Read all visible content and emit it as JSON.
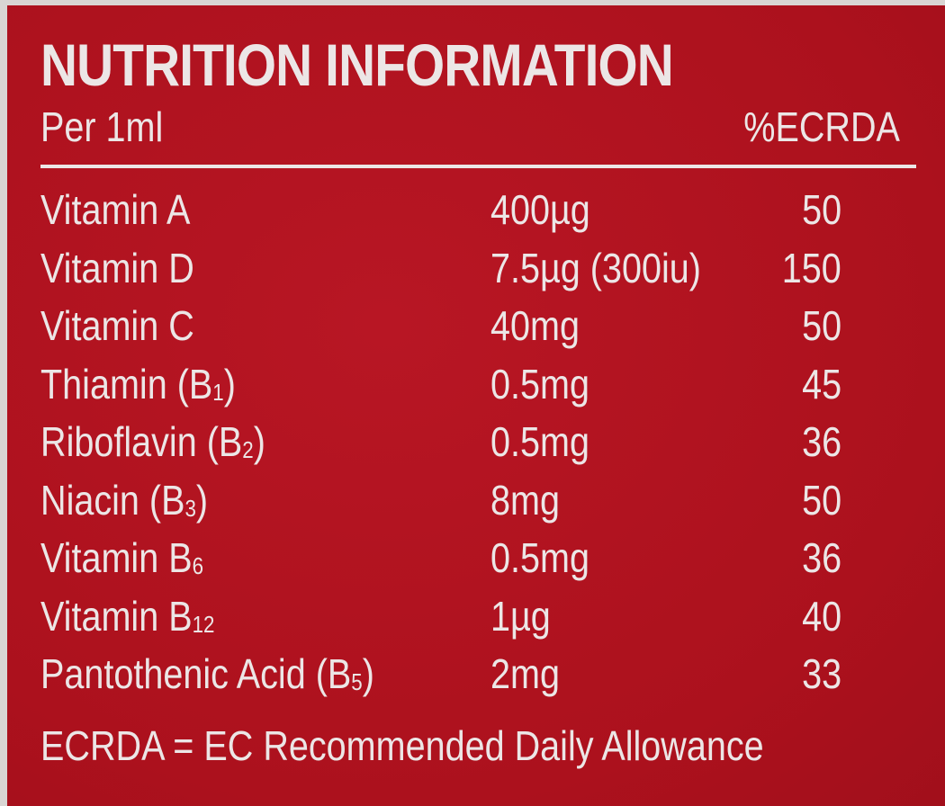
{
  "title": "NUTRITION INFORMATION",
  "per_label": "Per 1ml",
  "ecrda_header": "%ECRDA",
  "rows": [
    {
      "name": "Vitamin A",
      "sub": "",
      "name_suffix": "",
      "amount": "400µg",
      "ecrda": "50"
    },
    {
      "name": "Vitamin D",
      "sub": "",
      "name_suffix": "",
      "amount": "7.5µg (300iu)",
      "ecrda": "150"
    },
    {
      "name": "Vitamin C",
      "sub": "",
      "name_suffix": "",
      "amount": "40mg",
      "ecrda": "50"
    },
    {
      "name": "Thiamin (B",
      "sub": "1",
      "name_suffix": ")",
      "amount": "0.5mg",
      "ecrda": "45"
    },
    {
      "name": "Riboflavin (B",
      "sub": "2",
      "name_suffix": ")",
      "amount": "0.5mg",
      "ecrda": "36"
    },
    {
      "name": "Niacin (B",
      "sub": "3",
      "name_suffix": ")",
      "amount": "8mg",
      "ecrda": "50"
    },
    {
      "name": "Vitamin B",
      "sub": "6",
      "name_suffix": "",
      "amount": "0.5mg",
      "ecrda": "36"
    },
    {
      "name": "Vitamin B",
      "sub": "12",
      "name_suffix": "",
      "amount": "1µg",
      "ecrda": "40"
    },
    {
      "name": "Pantothenic Acid (B",
      "sub": "5",
      "name_suffix": ")",
      "amount": "2mg",
      "ecrda": "33"
    }
  ],
  "footnote": "ECRDA = EC Recommended Daily Allowance",
  "colors": {
    "background": "#b0121f",
    "text": "#ece6e6",
    "border": "#d9d5d3"
  }
}
